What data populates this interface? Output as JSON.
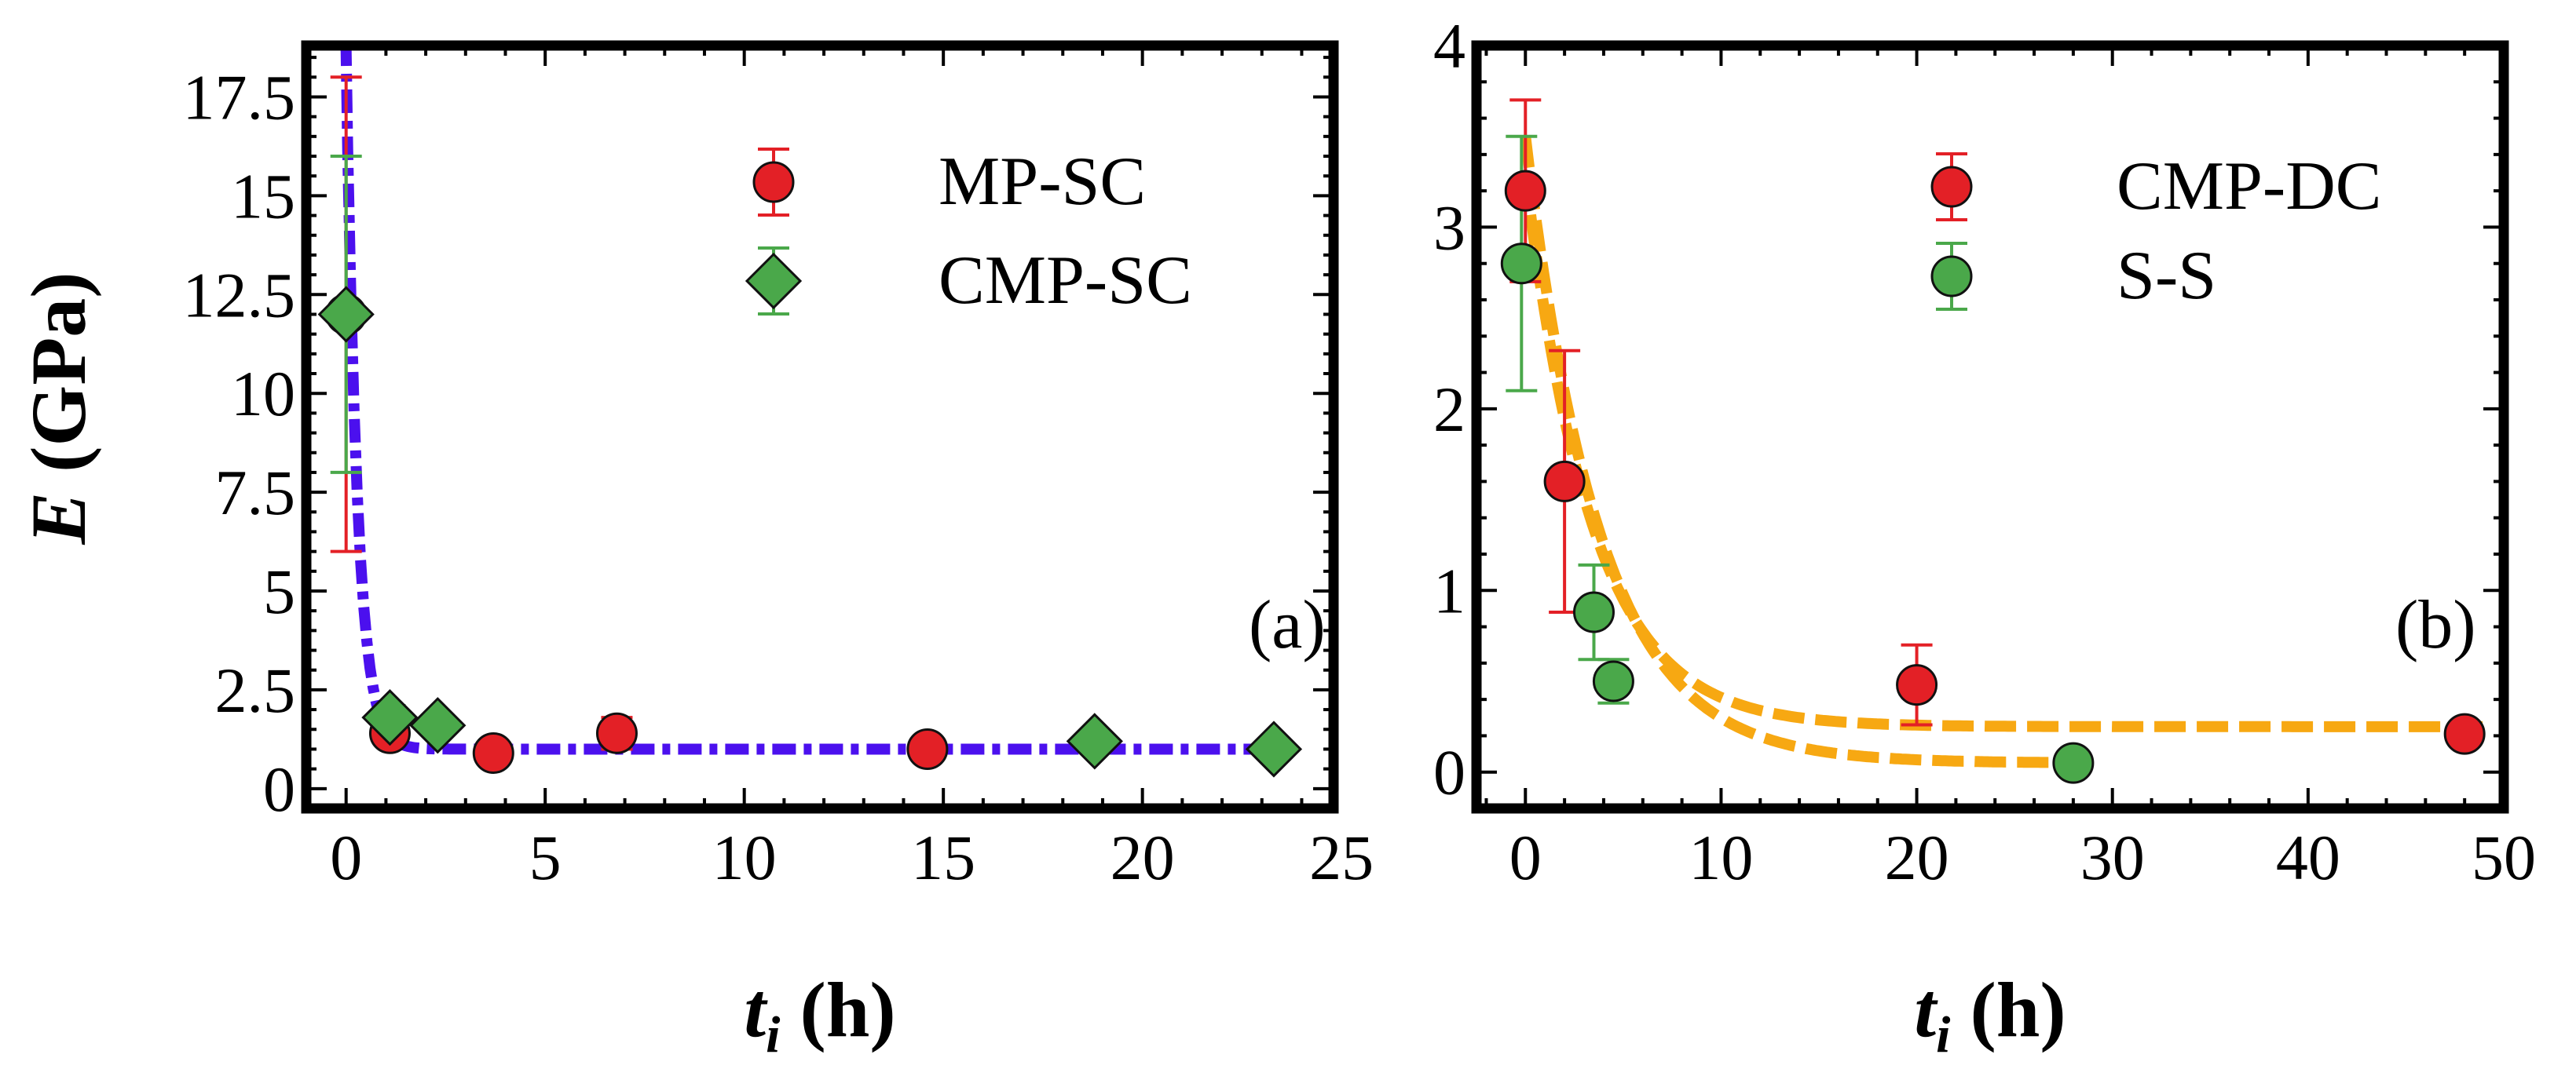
{
  "y_axis_label": {
    "italic": "E",
    "rest": " (GPa)"
  },
  "chart_data": [
    {
      "type": "scatter",
      "panel_label": "(a)",
      "xlabel": {
        "italic": "t",
        "sub": "i",
        "rest": " (h)"
      },
      "xlim": [
        -1,
        24.8
      ],
      "ylim": [
        -0.5,
        18.8
      ],
      "xticks": [
        0,
        5,
        10,
        15,
        20,
        25
      ],
      "yticks": [
        0,
        2.5,
        5,
        7.5,
        10,
        12.5,
        15,
        17.5
      ],
      "ytick_labels": [
        "0",
        "2.5",
        "5",
        "7.5",
        "10",
        "12.5",
        "15",
        "17.5"
      ],
      "legend_position": "top-right",
      "grid": false,
      "series": [
        {
          "name": "MP-SC",
          "marker": "circle",
          "color": "#e32026",
          "error_color": "#e32026",
          "points": [
            {
              "x": 0.0,
              "y": 12.0,
              "err": 6.0
            },
            {
              "x": 1.1,
              "y": 1.4,
              "err": 0.0
            },
            {
              "x": 3.7,
              "y": 0.9,
              "err": 0.0
            },
            {
              "x": 6.8,
              "y": 1.4,
              "err": 0.4
            },
            {
              "x": 14.6,
              "y": 1.0,
              "err": 0.0
            }
          ]
        },
        {
          "name": "CMP-SC",
          "marker": "diamond",
          "color": "#4aa84a",
          "error_color": "#4aa84a",
          "points": [
            {
              "x": 0.0,
              "y": 12.0,
              "err": 4.0
            },
            {
              "x": 1.1,
              "y": 1.8,
              "err": 0.3
            },
            {
              "x": 2.3,
              "y": 1.6,
              "err": 0.0
            },
            {
              "x": 18.8,
              "y": 1.2,
              "err": 0.0
            },
            {
              "x": 23.3,
              "y": 1.0,
              "err": 0.0
            }
          ]
        }
      ],
      "fits": [
        {
          "style": "dash-dot",
          "color": "#4b10ee",
          "y0": 18.5,
          "c": 1.0,
          "tau": 0.28,
          "x_from": -0.2,
          "x_to": 23.8
        }
      ]
    },
    {
      "type": "scatter",
      "panel_label": "(b)",
      "xlabel": {
        "italic": "t",
        "sub": "i",
        "rest": " (h)"
      },
      "xlim": [
        -2.5,
        50
      ],
      "ylim": [
        -0.2,
        4
      ],
      "xticks": [
        0,
        10,
        20,
        30,
        40,
        50
      ],
      "yticks": [
        0,
        1,
        2,
        3,
        4
      ],
      "ytick_labels": [
        "0",
        "1",
        "2",
        "3",
        "4"
      ],
      "legend_position": "top-right",
      "grid": false,
      "series": [
        {
          "name": "CMP-DC",
          "marker": "circle",
          "color": "#e32026",
          "error_color": "#e32026",
          "points": [
            {
              "x": 0.0,
              "y": 3.2,
              "err": 0.5
            },
            {
              "x": 2.0,
              "y": 1.6,
              "err": 0.72
            },
            {
              "x": 20.0,
              "y": 0.48,
              "err": 0.22
            },
            {
              "x": 48.0,
              "y": 0.21,
              "err": 0.0
            }
          ]
        },
        {
          "name": "S-S",
          "marker": "circle",
          "color": "#4aa84a",
          "error_color": "#4aa84a",
          "points": [
            {
              "x": -0.2,
              "y": 2.8,
              "err": 0.7
            },
            {
              "x": 3.5,
              "y": 0.88,
              "err": 0.26
            },
            {
              "x": 4.5,
              "y": 0.5,
              "err": 0.12
            },
            {
              "x": 28.0,
              "y": 0.05,
              "err": 0.0
            }
          ]
        }
      ],
      "fits": [
        {
          "style": "dash",
          "color": "#f7a812",
          "y0": 3.3,
          "c": 0.25,
          "tau": 3.4,
          "x_from": 0.0,
          "x_to": 49.0
        },
        {
          "style": "dash",
          "color": "#f7a812",
          "y0": 3.5,
          "c": 0.05,
          "tau": 3.8,
          "x_from": 0.0,
          "x_to": 28.0
        }
      ]
    }
  ]
}
